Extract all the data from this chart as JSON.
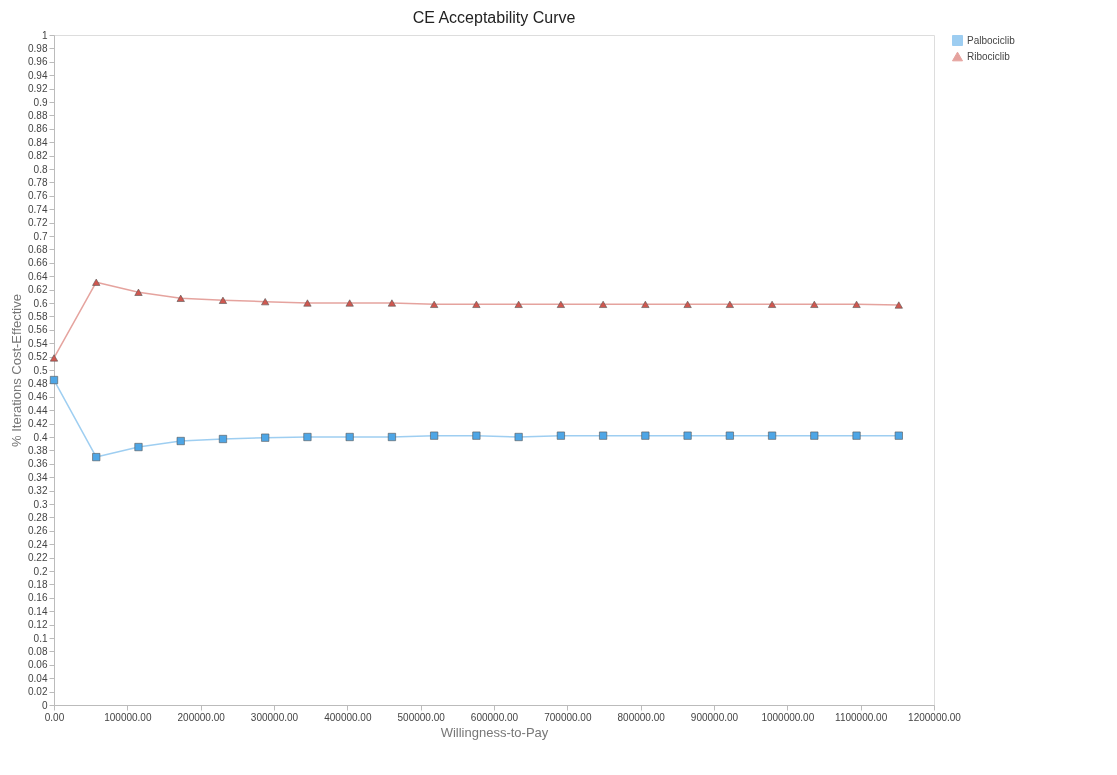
{
  "chart_data": {
    "type": "line",
    "title": "CE Acceptability Curve",
    "xlabel": "Willingness-to-Pay",
    "ylabel": "% Iterations Cost-Effective",
    "x": [
      0,
      57600,
      115200,
      172800,
      230400,
      288000,
      345600,
      403200,
      460800,
      518400,
      576000,
      633600,
      691200,
      748800,
      806400,
      864000,
      921600,
      979200,
      1036800,
      1094400,
      1152000
    ],
    "series": [
      {
        "name": "Palbociclib",
        "color": "#4ea6e6",
        "marker": "square",
        "values": [
          0.485,
          0.37,
          0.385,
          0.394,
          0.397,
          0.399,
          0.4,
          0.4,
          0.4,
          0.402,
          0.402,
          0.4,
          0.402,
          0.402,
          0.402,
          0.402,
          0.402,
          0.402,
          0.402,
          0.402,
          0.402
        ]
      },
      {
        "name": "Ribociclib",
        "color": "#d0574f",
        "marker": "triangle",
        "values": [
          0.518,
          0.631,
          0.616,
          0.607,
          0.604,
          0.602,
          0.6,
          0.6,
          0.6,
          0.598,
          0.598,
          0.598,
          0.598,
          0.598,
          0.598,
          0.598,
          0.598,
          0.598,
          0.598,
          0.598,
          0.597
        ]
      }
    ],
    "xlim": [
      0,
      1200000
    ],
    "xticks": [
      {
        "value": 0,
        "label": "0.00"
      },
      {
        "value": 100000,
        "label": "100000.00"
      },
      {
        "value": 200000,
        "label": "200000.00"
      },
      {
        "value": 300000,
        "label": "300000.00"
      },
      {
        "value": 400000,
        "label": "400000.00"
      },
      {
        "value": 500000,
        "label": "500000.00"
      },
      {
        "value": 600000,
        "label": "600000.00"
      },
      {
        "value": 700000,
        "label": "700000.00"
      },
      {
        "value": 800000,
        "label": "800000.00"
      },
      {
        "value": 900000,
        "label": "900000.00"
      },
      {
        "value": 1000000,
        "label": "1000000.00"
      },
      {
        "value": 1100000,
        "label": "1100000.00"
      },
      {
        "value": 1200000,
        "label": "1200000.00"
      }
    ],
    "ylim": [
      0,
      1
    ],
    "yticks": [
      0,
      0.02,
      0.04,
      0.06,
      0.08,
      0.1,
      0.12,
      0.14,
      0.16,
      0.18,
      0.2,
      0.22,
      0.24,
      0.26,
      0.28,
      0.3,
      0.32,
      0.34,
      0.36,
      0.38,
      0.4,
      0.42,
      0.44,
      0.46,
      0.48,
      0.5,
      0.52,
      0.54,
      0.56,
      0.58,
      0.6,
      0.62,
      0.64,
      0.66,
      0.68,
      0.7,
      0.72,
      0.74,
      0.76,
      0.78,
      0.8,
      0.82,
      0.84,
      0.86,
      0.88,
      0.9,
      0.92,
      0.94,
      0.96,
      0.98,
      1
    ],
    "grid": false,
    "legend": "top right",
    "line_style": "solid"
  }
}
